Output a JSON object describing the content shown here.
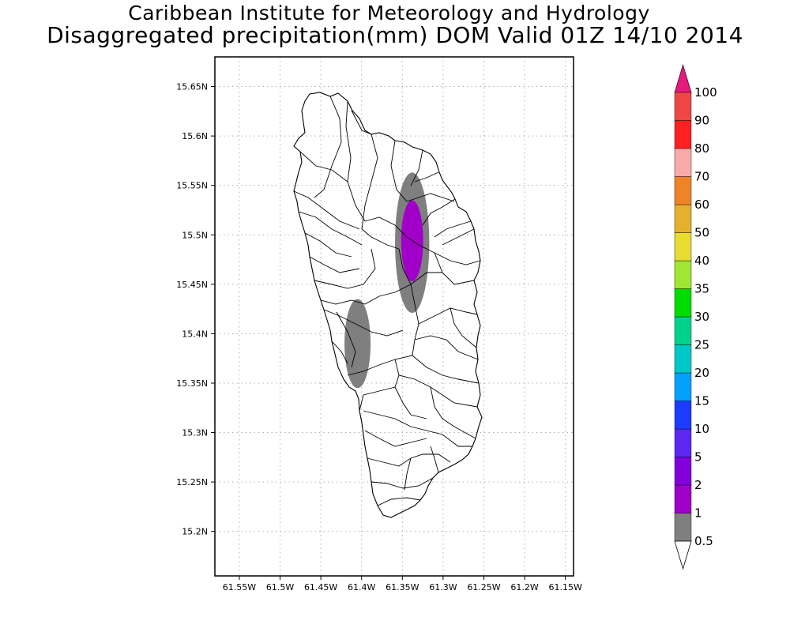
{
  "title": {
    "line1": "Caribbean Institute for Meteorology and Hydrology",
    "line2": "Disaggregated precipitation(mm) DOM Valid 01Z 14/10 2014"
  },
  "map": {
    "lon_range": [
      61.58,
      61.14
    ],
    "lat_range": [
      15.155,
      15.68
    ],
    "lon_ticks": [
      61.55,
      61.5,
      61.45,
      61.4,
      61.35,
      61.3,
      61.25,
      61.2,
      61.15
    ],
    "lon_tick_labels": [
      "61.55W",
      "61.5W",
      "61.45W",
      "61.4W",
      "61.35W",
      "61.3W",
      "61.25W",
      "61.2W",
      "61.15W"
    ],
    "lat_ticks": [
      15.65,
      15.6,
      15.55,
      15.5,
      15.45,
      15.4,
      15.35,
      15.3,
      15.25,
      15.2
    ],
    "lat_tick_labels": [
      "15.65N",
      "15.6N",
      "15.55N",
      "15.5N",
      "15.45N",
      "15.4N",
      "15.35N",
      "15.3N",
      "15.25N",
      "15.2N"
    ],
    "precip_areas": [
      {
        "name": "north-central-gray",
        "lon": 61.338,
        "lat": 15.492,
        "rlon": 0.021,
        "rlat": 0.071,
        "value_mm": 0.5
      },
      {
        "name": "north-central-purple",
        "lon": 61.338,
        "lat": 15.494,
        "rlon": 0.0135,
        "rlat": 0.041,
        "value_mm": 1
      },
      {
        "name": "west-coast-gray",
        "lon": 61.405,
        "lat": 15.39,
        "rlon": 0.016,
        "rlat": 0.045,
        "value_mm": 0.5
      }
    ]
  },
  "colorbar": {
    "labels": [
      "0.5",
      "1",
      "2",
      "5",
      "10",
      "15",
      "20",
      "25",
      "30",
      "35",
      "40",
      "50",
      "60",
      "70",
      "80",
      "90",
      "100"
    ],
    "colors": [
      "#7f7f7f",
      "#a000c8",
      "#8200dc",
      "#5a28f0",
      "#1e3cff",
      "#00a0ff",
      "#00c8c8",
      "#00d28c",
      "#00dc00",
      "#a0e632",
      "#e6dc32",
      "#e6af2d",
      "#f08228",
      "#faaaaa",
      "#ff2020",
      "#f04646"
    ],
    "top_cap_color": "#e6197d",
    "bottom_cap_color": "#ffffff"
  }
}
